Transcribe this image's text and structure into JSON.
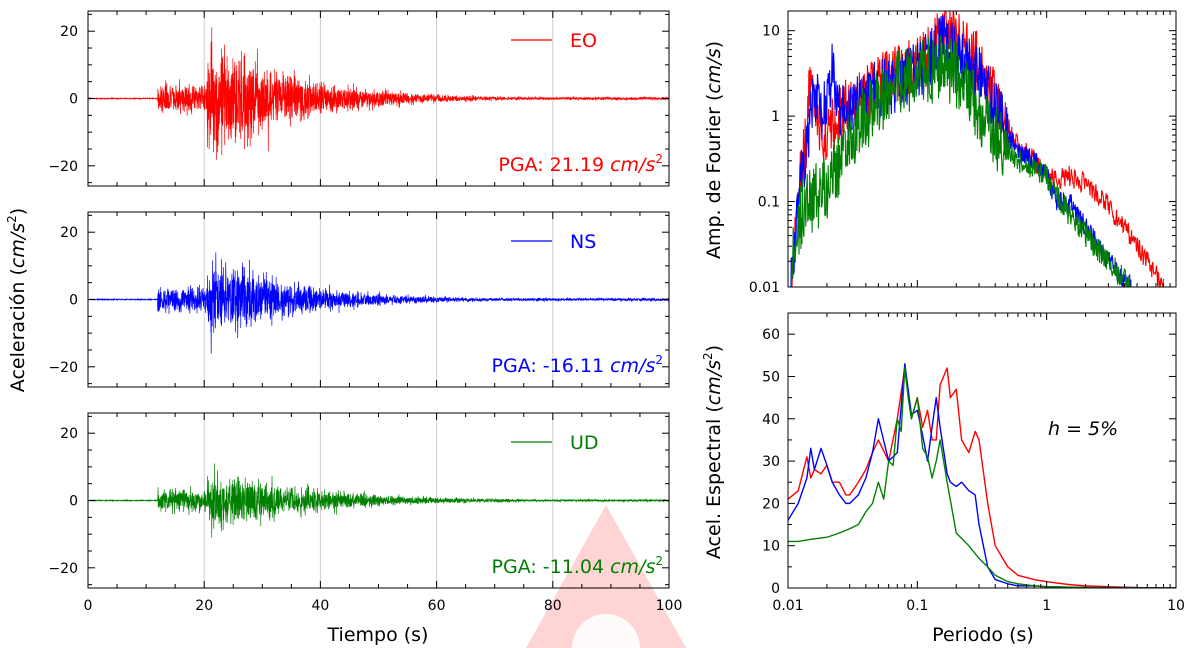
{
  "figure": {
    "ylabel_left": "Aceleración",
    "ylabel_left_unit": "cm/s",
    "xlabel_left": "Tiempo (s)",
    "xlabel_right": "Periodo (s)",
    "ylabel_fourier": "Amp. de Fourier",
    "ylabel_fourier_unit": "cm/s",
    "ylabel_spectral": "Acel. Espectral",
    "ylabel_spectral_unit": "cm/s",
    "annotation": "h = 5%"
  },
  "chart_data": [
    {
      "type": "line",
      "panel": "EO",
      "series": [
        {
          "name": "EO",
          "color": "#ff0000"
        }
      ],
      "pga_label": "PGA: 21.19",
      "pga_value": 21.19,
      "pga_unit": "cm/s",
      "xlim": [
        0,
        100
      ],
      "ylim": [
        -26,
        26
      ],
      "xticks": [
        0,
        20,
        40,
        60,
        80,
        100
      ],
      "yticks": [
        -20,
        0,
        20
      ],
      "grid": "vertical",
      "legend": "top-right",
      "envelope": {
        "onset": 12,
        "peak_time": 21.5,
        "pre_amp": 4,
        "peak_amp": 13,
        "decay": 0.07,
        "floor": 0.4
      },
      "spikes": [
        {
          "t": 21.3,
          "v": 21.19
        },
        {
          "t": 21.6,
          "v": -16
        },
        {
          "t": 23.5,
          "v": 16
        },
        {
          "t": 22.4,
          "v": -14
        }
      ]
    },
    {
      "type": "line",
      "panel": "NS",
      "series": [
        {
          "name": "NS",
          "color": "#0000ff"
        }
      ],
      "pga_label": "PGA: -16.11",
      "pga_value": -16.11,
      "pga_unit": "cm/s",
      "xlim": [
        0,
        100
      ],
      "ylim": [
        -26,
        26
      ],
      "xticks": [
        0,
        20,
        40,
        60,
        80,
        100
      ],
      "yticks": [
        -20,
        0,
        20
      ],
      "grid": "vertical",
      "legend": "top-right",
      "envelope": {
        "onset": 12,
        "peak_time": 21.5,
        "pre_amp": 3.5,
        "peak_amp": 9,
        "decay": 0.07,
        "floor": 0.4
      },
      "spikes": [
        {
          "t": 21.2,
          "v": -16.11
        },
        {
          "t": 22.0,
          "v": 14
        },
        {
          "t": 23.0,
          "v": 12
        }
      ]
    },
    {
      "type": "line",
      "panel": "UD",
      "series": [
        {
          "name": "UD",
          "color": "#008000"
        }
      ],
      "pga_label": "PGA: -11.04",
      "pga_value": -11.04,
      "pga_unit": "cm/s",
      "xlim": [
        0,
        100
      ],
      "ylim": [
        -26,
        26
      ],
      "xticks": [
        0,
        20,
        40,
        60,
        80,
        100
      ],
      "yticks": [
        -20,
        0,
        20
      ],
      "grid": "vertical",
      "legend": "top-right",
      "envelope": {
        "onset": 12,
        "peak_time": 21.5,
        "pre_amp": 3,
        "peak_amp": 7,
        "decay": 0.06,
        "floor": 0.3
      },
      "spikes": [
        {
          "t": 21.3,
          "v": -11.04
        },
        {
          "t": 21.8,
          "v": 11
        },
        {
          "t": 22.3,
          "v": 9
        }
      ]
    },
    {
      "type": "line",
      "panel": "Fourier",
      "xscale": "log",
      "yscale": "log",
      "xlim": [
        0.01,
        10
      ],
      "ylim": [
        0.01,
        17
      ],
      "xticks": [
        0.01,
        0.1,
        1,
        10
      ],
      "yticks": [
        0.01,
        0.1,
        1,
        10
      ],
      "ytick_labels": [
        "0.01",
        "0.1",
        "1",
        "10"
      ],
      "series": [
        {
          "name": "EO",
          "color": "#ff0000",
          "noise": 0.35,
          "x": [
            0.0105,
            0.012,
            0.014,
            0.015,
            0.016,
            0.018,
            0.02,
            0.025,
            0.03,
            0.04,
            0.05,
            0.07,
            0.1,
            0.13,
            0.16,
            0.2,
            0.25,
            0.3,
            0.4,
            0.5,
            0.6,
            0.8,
            1,
            1.2,
            1.5,
            2,
            3,
            4,
            6,
            8
          ],
          "y": [
            0.01,
            0.15,
            0.6,
            4.5,
            1.5,
            0.6,
            0.7,
            1.0,
            1.5,
            1.8,
            2.5,
            3.0,
            4.0,
            5.5,
            10.0,
            8.0,
            6.5,
            4.0,
            1.5,
            0.8,
            0.45,
            0.3,
            0.2,
            0.18,
            0.2,
            0.16,
            0.09,
            0.05,
            0.02,
            0.01
          ]
        },
        {
          "name": "NS",
          "color": "#0000ff",
          "noise": 0.35,
          "x": [
            0.0105,
            0.012,
            0.014,
            0.016,
            0.018,
            0.02,
            0.022,
            0.025,
            0.03,
            0.04,
            0.05,
            0.07,
            0.1,
            0.13,
            0.16,
            0.2,
            0.25,
            0.3,
            0.4,
            0.5,
            0.6,
            0.8,
            1,
            1.2,
            1.5,
            2,
            3,
            4.5
          ],
          "y": [
            0.01,
            0.1,
            0.5,
            2.0,
            1.0,
            1.5,
            4.0,
            1.2,
            1.0,
            1.8,
            2.0,
            2.5,
            3.5,
            5.0,
            7.5,
            5.0,
            4.0,
            3.0,
            1.2,
            0.6,
            0.4,
            0.3,
            0.2,
            0.1,
            0.1,
            0.05,
            0.02,
            0.01
          ]
        },
        {
          "name": "UD",
          "color": "#008000",
          "noise": 0.4,
          "x": [
            0.0105,
            0.011,
            0.013,
            0.015,
            0.02,
            0.03,
            0.04,
            0.05,
            0.07,
            0.1,
            0.13,
            0.16,
            0.2,
            0.25,
            0.3,
            0.4,
            0.5,
            0.6,
            0.8,
            1,
            1.2,
            1.5,
            2,
            3,
            4.5
          ],
          "y": [
            0.01,
            0.03,
            0.08,
            0.1,
            0.15,
            0.5,
            1.0,
            1.5,
            2.5,
            3.0,
            3.5,
            4.0,
            3.0,
            2.0,
            1.2,
            0.6,
            0.4,
            0.3,
            0.25,
            0.2,
            0.12,
            0.07,
            0.04,
            0.02,
            0.01
          ]
        }
      ]
    },
    {
      "type": "line",
      "panel": "Spectral",
      "xscale": "log",
      "yscale": "linear",
      "xlim": [
        0.01,
        10
      ],
      "ylim": [
        0,
        65
      ],
      "xticks": [
        0.01,
        0.1,
        1,
        10
      ],
      "yticks": [
        0,
        10,
        20,
        30,
        40,
        50,
        60
      ],
      "annotation_position": "right-middle",
      "series": [
        {
          "name": "EO",
          "color": "#ff0000",
          "x": [
            0.01,
            0.012,
            0.014,
            0.015,
            0.016,
            0.018,
            0.02,
            0.022,
            0.025,
            0.028,
            0.03,
            0.035,
            0.04,
            0.045,
            0.05,
            0.06,
            0.07,
            0.08,
            0.09,
            0.1,
            0.11,
            0.12,
            0.13,
            0.14,
            0.15,
            0.17,
            0.18,
            0.2,
            0.22,
            0.25,
            0.28,
            0.3,
            0.35,
            0.4,
            0.5,
            0.6,
            0.8,
            1,
            1.5,
            2,
            3,
            5,
            10
          ],
          "y": [
            21,
            23,
            31,
            26,
            28,
            27,
            29,
            25,
            25,
            22,
            22,
            25,
            28,
            32,
            35,
            30,
            40,
            52,
            40,
            45,
            38,
            42,
            35,
            35,
            48,
            52,
            45,
            47,
            35,
            32,
            37,
            35,
            20,
            10,
            5,
            3,
            2,
            1.5,
            0.8,
            0.5,
            0.3,
            0.1,
            0
          ]
        },
        {
          "name": "NS",
          "color": "#0000ff",
          "x": [
            0.01,
            0.012,
            0.014,
            0.015,
            0.016,
            0.018,
            0.02,
            0.022,
            0.025,
            0.028,
            0.03,
            0.035,
            0.04,
            0.045,
            0.05,
            0.06,
            0.07,
            0.08,
            0.09,
            0.1,
            0.11,
            0.12,
            0.13,
            0.14,
            0.15,
            0.17,
            0.18,
            0.2,
            0.22,
            0.25,
            0.28,
            0.3,
            0.35,
            0.4,
            0.5,
            0.6,
            0.8,
            1,
            1.5,
            2,
            3,
            5,
            10
          ],
          "y": [
            16,
            20,
            26,
            33,
            28,
            33,
            29,
            25,
            22,
            20,
            20,
            22,
            26,
            32,
            40,
            30,
            32,
            53,
            41,
            42,
            36,
            30,
            38,
            45,
            38,
            27,
            25,
            24,
            25,
            23,
            22,
            15,
            5,
            2,
            1,
            0.5,
            0.5,
            0.3,
            0.2,
            0.1,
            0.1,
            0.05,
            0
          ]
        },
        {
          "name": "UD",
          "color": "#008000",
          "x": [
            0.01,
            0.012,
            0.015,
            0.02,
            0.025,
            0.03,
            0.035,
            0.04,
            0.045,
            0.05,
            0.055,
            0.06,
            0.065,
            0.07,
            0.075,
            0.08,
            0.085,
            0.09,
            0.1,
            0.11,
            0.12,
            0.13,
            0.14,
            0.15,
            0.17,
            0.2,
            0.25,
            0.3,
            0.35,
            0.4,
            0.5,
            0.6,
            0.8,
            1,
            1.5,
            2,
            3,
            5,
            10
          ],
          "y": [
            11,
            11,
            11.5,
            12,
            13,
            14,
            15,
            18,
            20,
            25,
            21,
            30,
            29,
            40,
            37,
            52,
            45,
            40,
            45,
            33,
            31,
            26,
            30,
            35,
            25,
            13,
            10,
            7,
            5,
            3,
            1.5,
            1,
            0.5,
            0.3,
            0.2,
            0.1,
            0.05,
            0,
            0
          ]
        }
      ]
    }
  ]
}
